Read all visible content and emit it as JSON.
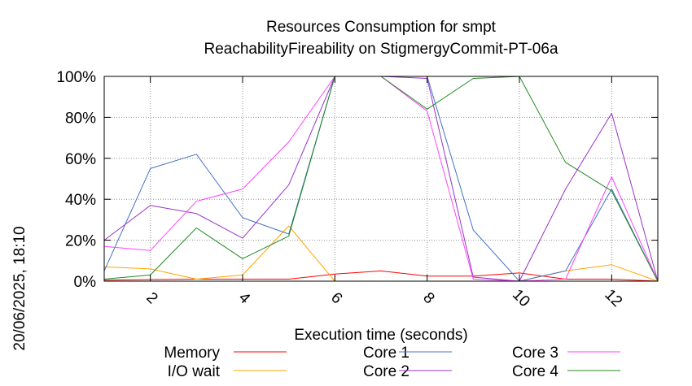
{
  "chart_data": {
    "type": "line",
    "title": "Resources Consumption for smpt",
    "subtitle": "ReachabilityFireability on StigmergyCommit-PT-06a",
    "xlabel": "Execution time (seconds)",
    "ylabel": "",
    "side_label": "20/06/2025, 18:10",
    "xlim": [
      1,
      13
    ],
    "ylim": [
      0,
      100
    ],
    "x_ticks": [
      2,
      4,
      6,
      8,
      10,
      12
    ],
    "y_ticks": [
      0,
      20,
      40,
      60,
      80,
      100
    ],
    "y_tick_labels": [
      "0%",
      "20%",
      "40%",
      "60%",
      "80%",
      "100%"
    ],
    "grid": true,
    "legend_position": "bottom",
    "x": [
      1,
      2,
      3,
      4,
      5,
      6,
      7,
      8,
      9,
      10,
      11,
      12,
      13
    ],
    "series": [
      {
        "name": "Memory",
        "color": "#ff0000",
        "values": [
          0.5,
          0.8,
          1,
          1,
          1,
          3.5,
          5,
          2.5,
          2.5,
          4,
          1,
          1,
          0
        ]
      },
      {
        "name": "I/O wait",
        "color": "#ffa500",
        "values": [
          7,
          6,
          1,
          3,
          27,
          0,
          0,
          0,
          0,
          0,
          5,
          8,
          0
        ]
      },
      {
        "name": "Core 1",
        "color": "#4472c4",
        "values": [
          5,
          55,
          62,
          31,
          23,
          100,
          100,
          100,
          25,
          0,
          5,
          45,
          0
        ]
      },
      {
        "name": "Core 2",
        "color": "#9932cc",
        "values": [
          20,
          37,
          33,
          21,
          47,
          100,
          100,
          99,
          2,
          0,
          45,
          82,
          0
        ]
      },
      {
        "name": "Core 3",
        "color": "#ff44ff",
        "values": [
          17,
          15,
          39,
          45,
          68,
          100,
          100,
          83,
          1,
          0,
          1,
          51,
          0
        ]
      },
      {
        "name": "Core 4",
        "color": "#228b22",
        "values": [
          1,
          3,
          26,
          11,
          22,
          100,
          100,
          84,
          99,
          100,
          58,
          44,
          0
        ]
      }
    ]
  }
}
